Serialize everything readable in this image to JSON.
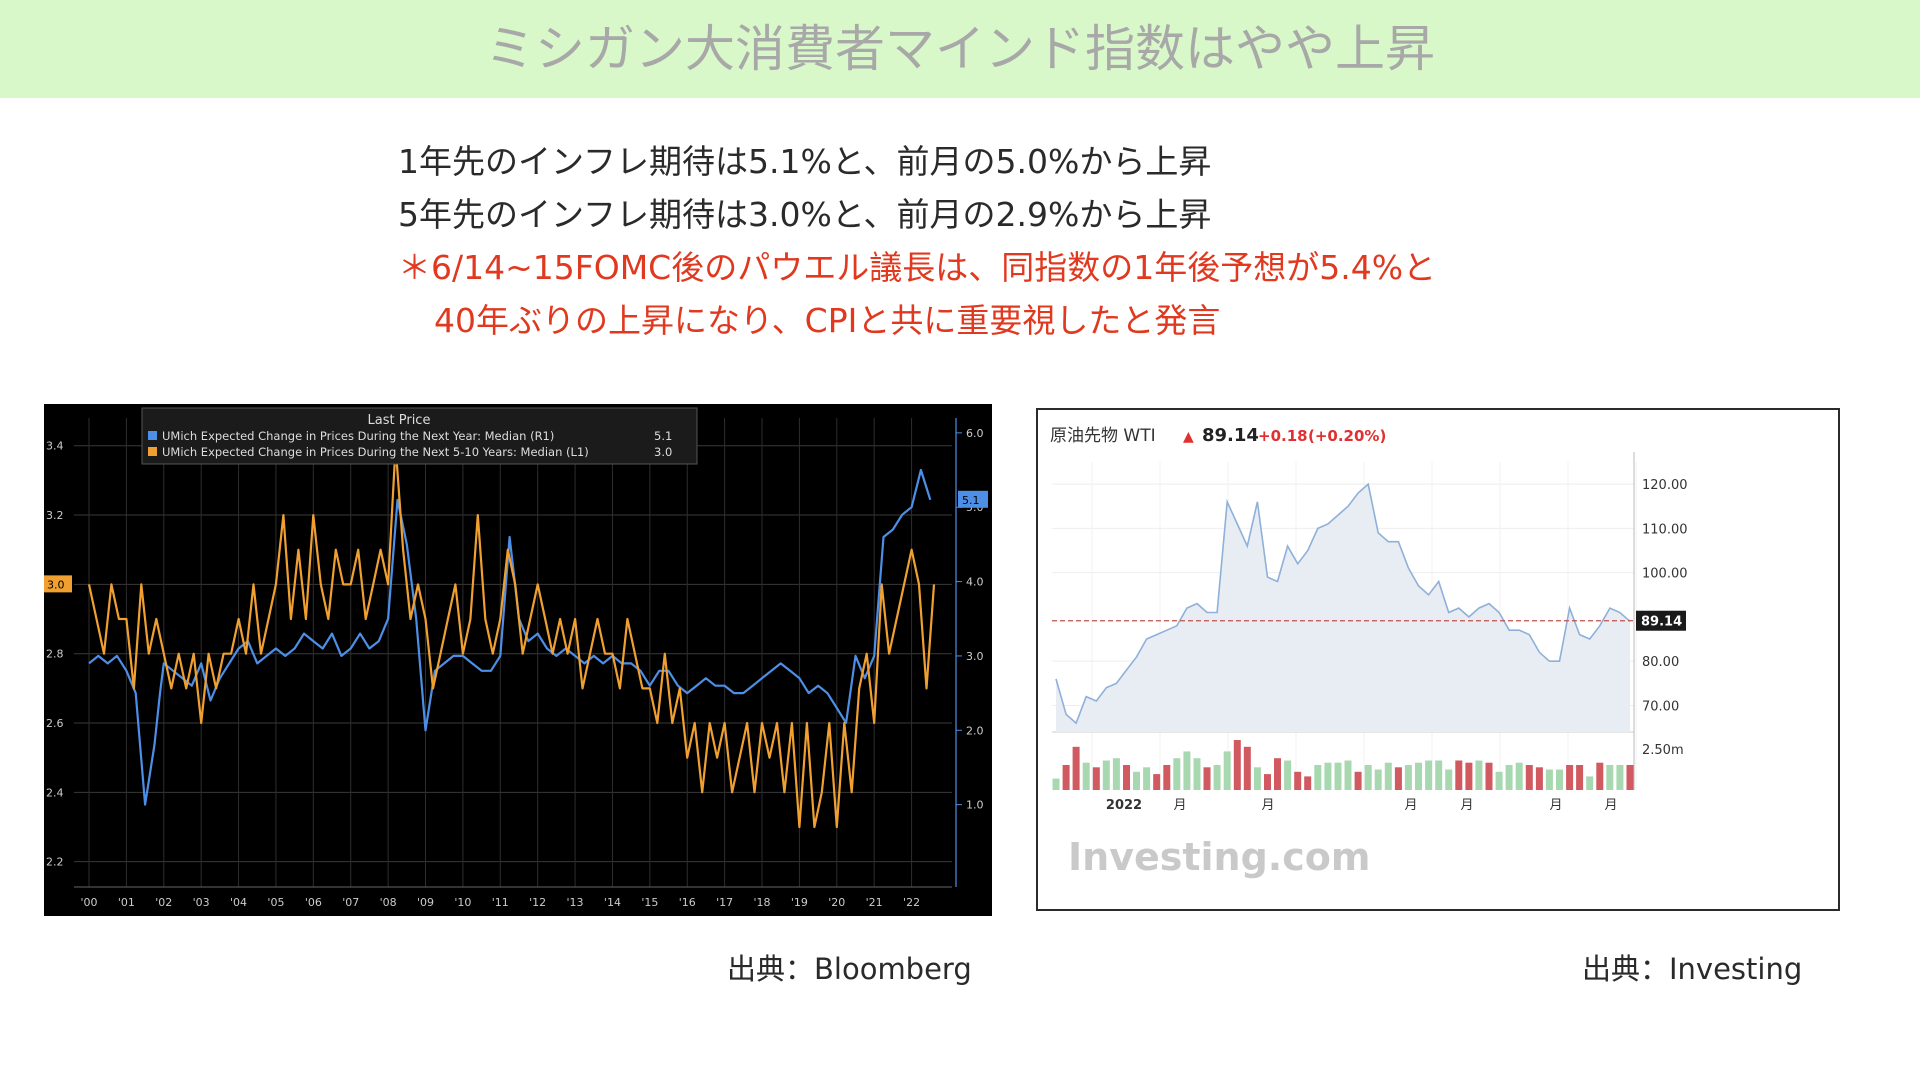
{
  "slide": {
    "title": "ミシガン大消費者マインド指数はやや上昇",
    "bullets": [
      "1年先のインフレ期待は5.1%と、前月の5.0%から上昇",
      "5年先のインフレ期待は3.0%と、前月の2.9%から上昇"
    ],
    "note_line1": "＊6/14~15FOMC後のパウエル議長は、同指数の1年後予想が5.4%と",
    "note_line2": "40年ぶりの上昇になり、CPIと共に重要視したと発言",
    "source_left": "出典：Bloomberg",
    "source_right": "出典：Investing"
  },
  "colors": {
    "banner_bg": "#d9f8c9",
    "title": "#a8a8a8",
    "note_red": "#e0391f",
    "bbg_blue": "#4d8fe6",
    "bbg_orange": "#f0a030",
    "wti_up": "#e03030",
    "vol_green": "#a8d8b0",
    "vol_red": "#d05a60"
  },
  "chart_data": [
    {
      "type": "line",
      "legend_title": "Last Price",
      "x_ticks": [
        "'00",
        "'01",
        "'02",
        "'03",
        "'04",
        "'05",
        "'06",
        "'07",
        "'08",
        "'09",
        "'10",
        "'11",
        "'12",
        "'13",
        "'14",
        "'15",
        "'16",
        "'17",
        "'18",
        "'19",
        "'20",
        "'21",
        "'22"
      ],
      "y_left_ticks": [
        "2.2",
        "2.4",
        "2.6",
        "2.8",
        "3.0",
        "3.2",
        "3.4"
      ],
      "y_right_ticks": [
        "1.0",
        "2.0",
        "3.0",
        "4.0",
        "5.0",
        "6.0"
      ],
      "ylim_left": [
        2.15,
        3.48
      ],
      "ylim_right": [
        0.0,
        6.2
      ],
      "grid": true,
      "legend_position": "top-left",
      "series": [
        {
          "name": "UMich Expected Change in Prices During the Next Year: Median  (R1)",
          "last_value": "5.1",
          "axis": "right",
          "color": "#4d8fe6",
          "x": [
            2000.0,
            2000.25,
            2000.5,
            2000.75,
            2001.0,
            2001.25,
            2001.5,
            2001.75,
            2001.9,
            2002.0,
            2002.25,
            2002.5,
            2002.75,
            2003.0,
            2003.25,
            2003.5,
            2003.75,
            2004.0,
            2004.25,
            2004.5,
            2004.75,
            2005.0,
            2005.25,
            2005.5,
            2005.75,
            2006.0,
            2006.25,
            2006.5,
            2006.75,
            2007.0,
            2007.25,
            2007.5,
            2007.75,
            2008.0,
            2008.25,
            2008.5,
            2008.75,
            2009.0,
            2009.25,
            2009.5,
            2009.75,
            2010.0,
            2010.25,
            2010.5,
            2010.75,
            2011.0,
            2011.25,
            2011.5,
            2011.75,
            2012.0,
            2012.25,
            2012.5,
            2012.75,
            2013.0,
            2013.25,
            2013.5,
            2013.75,
            2014.0,
            2014.25,
            2014.5,
            2014.75,
            2015.0,
            2015.25,
            2015.5,
            2015.75,
            2016.0,
            2016.25,
            2016.5,
            2016.75,
            2017.0,
            2017.25,
            2017.5,
            2017.75,
            2018.0,
            2018.25,
            2018.5,
            2018.75,
            2019.0,
            2019.25,
            2019.5,
            2019.75,
            2020.0,
            2020.25,
            2020.5,
            2020.75,
            2021.0,
            2021.25,
            2021.5,
            2021.75,
            2022.0,
            2022.25,
            2022.5
          ],
          "values": [
            2.9,
            3.0,
            2.9,
            3.0,
            2.8,
            2.5,
            1.0,
            1.8,
            2.5,
            2.9,
            2.8,
            2.7,
            2.6,
            2.9,
            2.4,
            2.7,
            2.9,
            3.1,
            3.2,
            2.9,
            3.0,
            3.1,
            3.0,
            3.1,
            3.3,
            3.2,
            3.1,
            3.3,
            3.0,
            3.1,
            3.3,
            3.1,
            3.2,
            3.5,
            5.1,
            4.5,
            3.5,
            2.0,
            2.8,
            2.9,
            3.0,
            3.0,
            2.9,
            2.8,
            2.8,
            3.0,
            4.6,
            3.5,
            3.2,
            3.3,
            3.1,
            3.0,
            3.1,
            3.0,
            2.9,
            3.0,
            2.9,
            3.0,
            2.9,
            2.9,
            2.8,
            2.6,
            2.8,
            2.8,
            2.6,
            2.5,
            2.6,
            2.7,
            2.6,
            2.6,
            2.5,
            2.5,
            2.6,
            2.7,
            2.8,
            2.9,
            2.8,
            2.7,
            2.5,
            2.6,
            2.5,
            2.3,
            2.1,
            3.0,
            2.7,
            3.0,
            4.6,
            4.7,
            4.9,
            5.0,
            5.5,
            5.1
          ]
        },
        {
          "name": "UMich Expected Change in Prices During the Next 5-10 Years: Median  (L1)",
          "last_value": "3.0",
          "axis": "left",
          "color": "#f0a030",
          "x": [
            2000.0,
            2000.2,
            2000.4,
            2000.6,
            2000.8,
            2001.0,
            2001.2,
            2001.4,
            2001.6,
            2001.8,
            2002.0,
            2002.2,
            2002.4,
            2002.6,
            2002.8,
            2003.0,
            2003.2,
            2003.4,
            2003.6,
            2003.8,
            2004.0,
            2004.2,
            2004.4,
            2004.6,
            2004.8,
            2005.0,
            2005.2,
            2005.4,
            2005.6,
            2005.8,
            2006.0,
            2006.2,
            2006.4,
            2006.6,
            2006.8,
            2007.0,
            2007.2,
            2007.4,
            2007.6,
            2007.8,
            2008.0,
            2008.2,
            2008.4,
            2008.6,
            2008.8,
            2009.0,
            2009.2,
            2009.4,
            2009.6,
            2009.8,
            2010.0,
            2010.2,
            2010.4,
            2010.6,
            2010.8,
            2011.0,
            2011.2,
            2011.4,
            2011.6,
            2011.8,
            2012.0,
            2012.2,
            2012.4,
            2012.6,
            2012.8,
            2013.0,
            2013.2,
            2013.4,
            2013.6,
            2013.8,
            2014.0,
            2014.2,
            2014.4,
            2014.6,
            2014.8,
            2015.0,
            2015.2,
            2015.4,
            2015.6,
            2015.8,
            2016.0,
            2016.2,
            2016.4,
            2016.6,
            2016.8,
            2017.0,
            2017.2,
            2017.4,
            2017.6,
            2017.8,
            2018.0,
            2018.2,
            2018.4,
            2018.6,
            2018.8,
            2019.0,
            2019.2,
            2019.4,
            2019.6,
            2019.8,
            2020.0,
            2020.2,
            2020.4,
            2020.6,
            2020.8,
            2021.0,
            2021.2,
            2021.4,
            2021.6,
            2021.8,
            2022.0,
            2022.2,
            2022.4,
            2022.6
          ],
          "values": [
            3.0,
            2.9,
            2.8,
            3.0,
            2.9,
            2.9,
            2.7,
            3.0,
            2.8,
            2.9,
            2.8,
            2.7,
            2.8,
            2.7,
            2.8,
            2.6,
            2.8,
            2.7,
            2.8,
            2.8,
            2.9,
            2.8,
            3.0,
            2.8,
            2.9,
            3.0,
            3.2,
            2.9,
            3.1,
            2.9,
            3.2,
            3.0,
            2.9,
            3.1,
            3.0,
            3.0,
            3.1,
            2.9,
            3.0,
            3.1,
            3.0,
            3.4,
            3.1,
            2.9,
            3.0,
            2.9,
            2.7,
            2.8,
            2.9,
            3.0,
            2.8,
            2.9,
            3.2,
            2.9,
            2.8,
            2.9,
            3.1,
            3.0,
            2.8,
            2.9,
            3.0,
            2.9,
            2.8,
            2.9,
            2.8,
            2.9,
            2.7,
            2.8,
            2.9,
            2.8,
            2.8,
            2.7,
            2.9,
            2.8,
            2.7,
            2.7,
            2.6,
            2.8,
            2.6,
            2.7,
            2.5,
            2.6,
            2.4,
            2.6,
            2.5,
            2.6,
            2.4,
            2.5,
            2.6,
            2.4,
            2.6,
            2.5,
            2.6,
            2.4,
            2.6,
            2.3,
            2.6,
            2.3,
            2.4,
            2.6,
            2.3,
            2.6,
            2.4,
            2.7,
            2.8,
            2.6,
            3.0,
            2.8,
            2.9,
            3.0,
            3.1,
            3.0,
            2.7,
            3.0
          ]
        }
      ]
    },
    {
      "type": "area",
      "title": "原油先物 WTI",
      "last_price": "89.14",
      "change": "+0.18",
      "change_pct": "(+0.20%)",
      "y_ticks": [
        "120.00",
        "110.00",
        "100.00",
        "89.14",
        "80.00",
        "70.00",
        "2.50m"
      ],
      "x_ticks": [
        "2022",
        "月",
        "月",
        "月",
        "月",
        "月",
        "月"
      ],
      "ylim": [
        64,
        125
      ],
      "reference_line": 89.14,
      "grid": true,
      "watermark": "Investing.com",
      "price": [
        76,
        68,
        66,
        72,
        71,
        74,
        75,
        78,
        81,
        85,
        86,
        87,
        88,
        92,
        93,
        91,
        91,
        116,
        111,
        106,
        116,
        99,
        98,
        106,
        102,
        105,
        110,
        111,
        113,
        115,
        118,
        120,
        109,
        107,
        107,
        101,
        97,
        95,
        98,
        91,
        92,
        90,
        92,
        93,
        91,
        87,
        87,
        86,
        82,
        80,
        80,
        92,
        86,
        85,
        88,
        92,
        91,
        89
      ],
      "volume": [
        0.25,
        0.55,
        0.95,
        0.6,
        0.5,
        0.65,
        0.7,
        0.55,
        0.4,
        0.5,
        0.35,
        0.55,
        0.7,
        0.85,
        0.7,
        0.5,
        0.55,
        0.85,
        1.1,
        0.95,
        0.5,
        0.35,
        0.7,
        0.65,
        0.4,
        0.3,
        0.55,
        0.6,
        0.6,
        0.65,
        0.4,
        0.55,
        0.45,
        0.6,
        0.5,
        0.55,
        0.6,
        0.65,
        0.65,
        0.45,
        0.65,
        0.6,
        0.65,
        0.6,
        0.4,
        0.55,
        0.6,
        0.55,
        0.5,
        0.45,
        0.45,
        0.55,
        0.55,
        0.3,
        0.6,
        0.55,
        0.55,
        0.55
      ],
      "volume_up": [
        1,
        0,
        0,
        1,
        0,
        1,
        1,
        0,
        1,
        1,
        0,
        0,
        1,
        1,
        1,
        0,
        1,
        1,
        0,
        0,
        1,
        0,
        0,
        1,
        0,
        0,
        1,
        1,
        1,
        1,
        0,
        1,
        1,
        1,
        0,
        1,
        1,
        1,
        1,
        1,
        0,
        0,
        1,
        0,
        1,
        1,
        1,
        0,
        0,
        1,
        1,
        0,
        0,
        1,
        0,
        1,
        1,
        0
      ]
    }
  ]
}
